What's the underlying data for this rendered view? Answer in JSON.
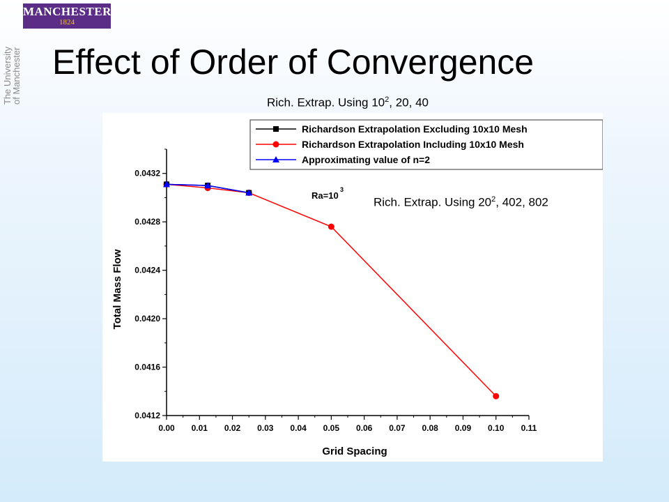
{
  "branding": {
    "logo_line1": "MANCHESTER",
    "logo_line2": "1824",
    "vertical_text_1": "The University",
    "vertical_text_2": "of Manchester"
  },
  "slide": {
    "title": "Effect of Order of Convergence"
  },
  "annotations": {
    "top_prefix": "Rich. Extrap. Using 10",
    "top_sup": "2",
    "top_suffix": ", 20, 40",
    "right_prefix": "Rich. Extrap. Using 20",
    "right_sup": "2",
    "right_suffix": ", 402, 802"
  },
  "chart_data": {
    "type": "line",
    "xlabel": "Grid Spacing",
    "ylabel": "Total Mass Flow",
    "xlim": [
      0.0,
      0.11
    ],
    "ylim": [
      0.0412,
      0.0434
    ],
    "xticks": [
      "0.00",
      "0.01",
      "0.02",
      "0.03",
      "0.04",
      "0.05",
      "0.06",
      "0.07",
      "0.08",
      "0.09",
      "0.10",
      "0.11"
    ],
    "yticks": [
      "0.0412",
      "0.0416",
      "0.0420",
      "0.0424",
      "0.0428",
      "0.0432"
    ],
    "annotation_base": "Ra=10",
    "annotation_sup": "3",
    "legend_position": "top-right",
    "series": [
      {
        "name": "Richardson Extrapolation Excluding 10x10 Mesh",
        "color": "#000000",
        "marker": "square",
        "x": [
          0.0,
          0.0125,
          0.025
        ],
        "y": [
          0.04311,
          0.0431,
          0.04304
        ]
      },
      {
        "name": "Richardson Extrapolation Including 10x10 Mesh",
        "color": "#ff0000",
        "marker": "circle",
        "x": [
          0.0,
          0.0125,
          0.025,
          0.05,
          0.1
        ],
        "y": [
          0.04311,
          0.04308,
          0.04304,
          0.04276,
          0.04136
        ]
      },
      {
        "name": "Approximating value of n=2",
        "color": "#0000ff",
        "marker": "triangle",
        "x": [
          0.0,
          0.0125,
          0.025
        ],
        "y": [
          0.04311,
          0.0431,
          0.04304
        ]
      }
    ]
  }
}
